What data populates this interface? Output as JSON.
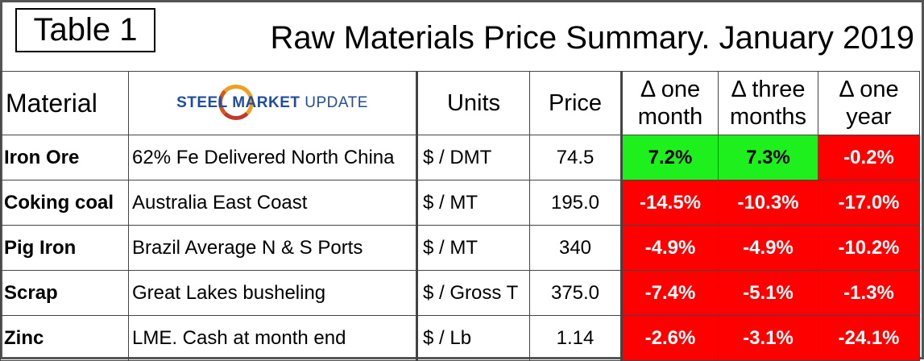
{
  "header": {
    "table_label": "Table 1",
    "title": "Raw Materials Price Summary. January 2019"
  },
  "table": {
    "headers": {
      "material": "Material",
      "logo_text_bold": "STEEL MARKET",
      "logo_text_light": " UPDATE",
      "units": "Units",
      "price": "Price",
      "delta_one_month": [
        "Δ one",
        "month"
      ],
      "delta_three_months": [
        "Δ three",
        "months"
      ],
      "delta_one_year": [
        "Δ one",
        "year"
      ]
    },
    "rows": [
      {
        "material": "Iron Ore",
        "description": "62% Fe Delivered North China",
        "units": "$ / DMT",
        "price": "74.5",
        "d1": "7.2%",
        "d3": "7.3%",
        "dy": "-0.2%"
      },
      {
        "material": "Coking coal",
        "description": "Australia East Coast",
        "units": "$ / MT",
        "price": "195.0",
        "d1": "-14.5%",
        "d3": "-10.3%",
        "dy": "-17.0%"
      },
      {
        "material": "Pig Iron",
        "description": "Brazil Average N & S Ports",
        "units": "$ / MT",
        "price": "340",
        "d1": "-4.9%",
        "d3": "-4.9%",
        "dy": "-10.2%"
      },
      {
        "material": "Scrap",
        "description": "Great Lakes busheling",
        "units": "$ / Gross T",
        "price": "375.0",
        "d1": "-7.4%",
        "d3": "-5.1%",
        "dy": "-1.3%"
      },
      {
        "material": "Zinc",
        "description": "LME. Cash at month end",
        "units": "$ / Lb",
        "price": "1.14",
        "d1": "-2.6%",
        "d3": "-3.1%",
        "dy": "-24.1%"
      }
    ]
  },
  "colors": {
    "positive": "#1ef01e",
    "negative": "#ff0000",
    "logo_blue": "#1f4e9e",
    "logo_orange": "#f0a020"
  }
}
